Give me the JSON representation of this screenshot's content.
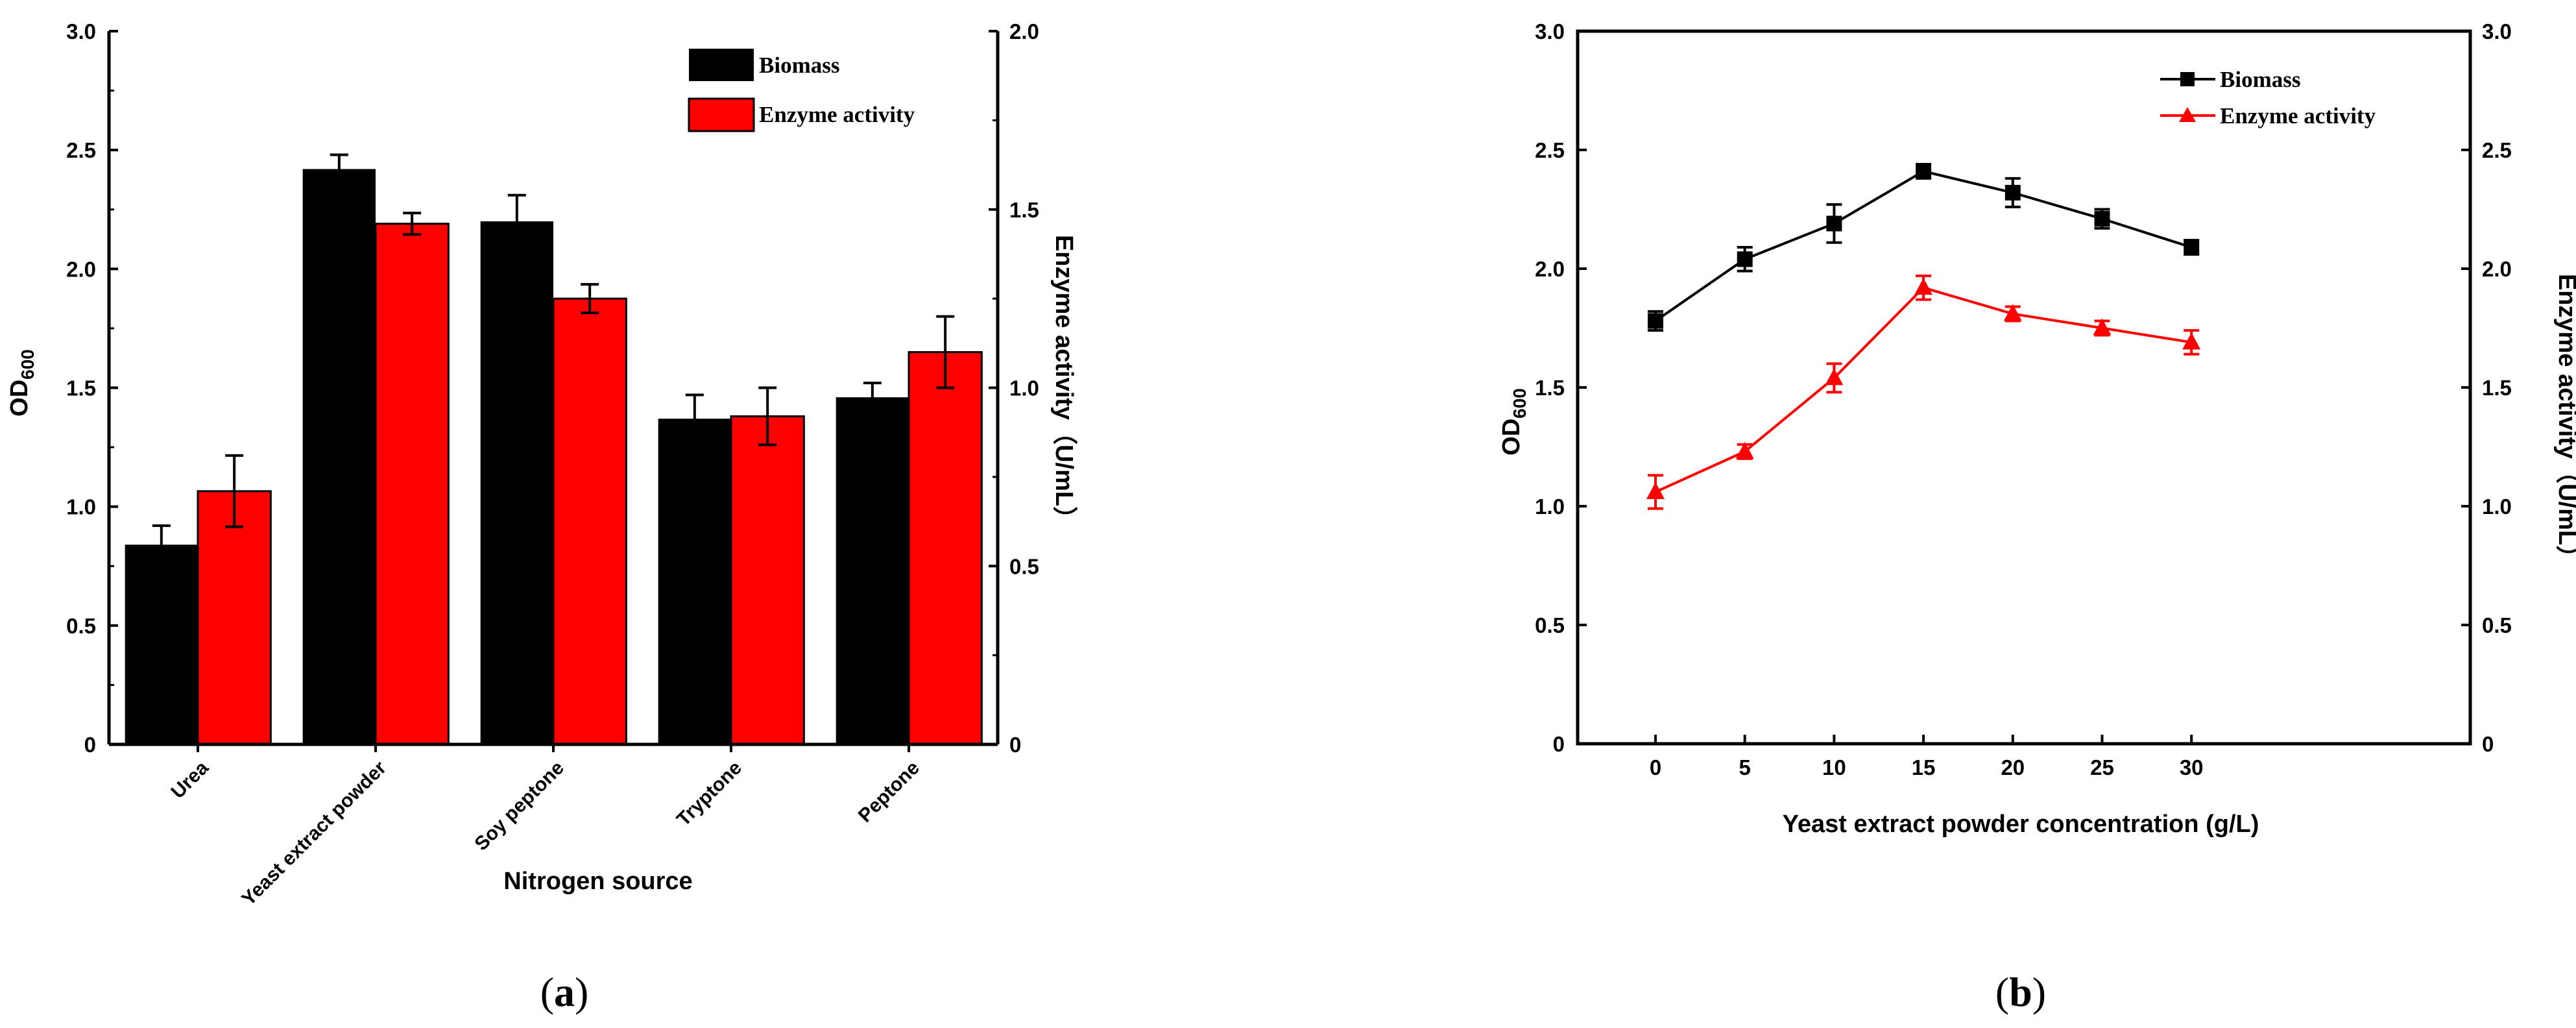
{
  "chart_data": [
    {
      "type": "bar",
      "panel_label": "a",
      "categories": [
        "Urea",
        "Yeast extract powder",
        "Soy peptone",
        "Tryptone",
        "Peptone"
      ],
      "xlabel": "Nitrogen source",
      "ylabel_main": "OD",
      "ylabel_sub": "600",
      "y2label": "Enzyme activity（U/mL）",
      "ylim": [
        0,
        3.0
      ],
      "y2lim": [
        0,
        2.0
      ],
      "yticks": [
        "0",
        "0.5",
        "1.0",
        "1.5",
        "2.0",
        "2.5",
        "3.0"
      ],
      "y2ticks": [
        "0",
        "0.5",
        "1.0",
        "1.5",
        "2.0"
      ],
      "series": [
        {
          "name": "Biomass",
          "axis": "left",
          "color": "#000000",
          "values": [
            0.84,
            2.42,
            2.2,
            1.37,
            1.46
          ],
          "errors": [
            0.08,
            0.06,
            0.11,
            0.1,
            0.06
          ]
        },
        {
          "name": "Enzyme activity",
          "axis": "right",
          "color": "#ff0000",
          "values": [
            0.71,
            1.46,
            1.25,
            0.92,
            1.1
          ],
          "errors": [
            0.1,
            0.03,
            0.04,
            0.08,
            0.1
          ]
        }
      ],
      "legend_position": "top-right"
    },
    {
      "type": "line",
      "panel_label": "b",
      "x": [
        0,
        5,
        10,
        15,
        20,
        25,
        30
      ],
      "xticks": [
        "0",
        "5",
        "10",
        "15",
        "20",
        "25",
        "30"
      ],
      "xlabel": "Yeast extract powder concentration (g/L)",
      "ylabel_main": "OD",
      "ylabel_sub": "600",
      "y2label": "Enzyme activity（U/mL）",
      "ylim": [
        0,
        3.0
      ],
      "y2lim": [
        0,
        3.0
      ],
      "yticks": [
        "0",
        "0.5",
        "1.0",
        "1.5",
        "2.0",
        "2.5",
        "3.0"
      ],
      "y2ticks": [
        "0",
        "0.5",
        "1.0",
        "1.5",
        "2.0",
        "2.5",
        "3.0"
      ],
      "series": [
        {
          "name": "Biomass",
          "axis": "left",
          "color": "#000000",
          "marker": "square",
          "values": [
            1.78,
            2.04,
            2.19,
            2.41,
            2.32,
            2.21,
            2.09
          ],
          "errors": [
            0.04,
            0.05,
            0.08,
            0.03,
            0.06,
            0.04,
            0.03
          ]
        },
        {
          "name": "Enzyme activity",
          "axis": "right",
          "color": "#ff0000",
          "marker": "triangle",
          "values": [
            1.06,
            1.23,
            1.54,
            1.92,
            1.81,
            1.75,
            1.69
          ],
          "errors": [
            0.07,
            0.03,
            0.06,
            0.05,
            0.03,
            0.03,
            0.05
          ]
        }
      ],
      "legend_position": "top-right"
    }
  ]
}
